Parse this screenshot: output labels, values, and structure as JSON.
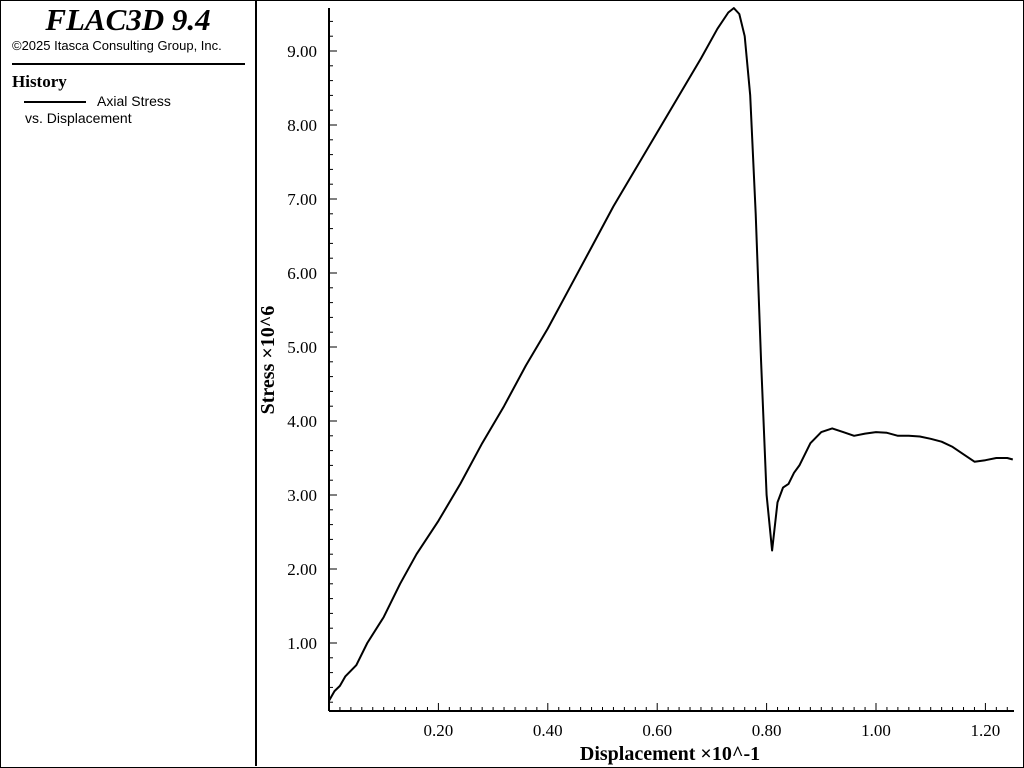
{
  "app": {
    "title": "FLAC3D 9.4",
    "copyright": "©2025 Itasca Consulting Group, Inc."
  },
  "legend": {
    "heading": "History",
    "entry_line1": "Axial Stress",
    "entry_line2": "vs. Displacement"
  },
  "chart_data": {
    "type": "line",
    "xlabel": "Displacement ×10^-1",
    "ylabel": "Stress ×10^6",
    "xlim": [
      0.0,
      1.25
    ],
    "ylim": [
      0.0,
      9.6
    ],
    "xticks": [
      "0.20",
      "0.40",
      "0.60",
      "0.80",
      "1.00",
      "1.20"
    ],
    "xtick_values": [
      0.2,
      0.4,
      0.6,
      0.8,
      1.0,
      1.2
    ],
    "yticks": [
      "1.00",
      "2.00",
      "3.00",
      "4.00",
      "5.00",
      "6.00",
      "7.00",
      "8.00",
      "9.00"
    ],
    "ytick_values": [
      1,
      2,
      3,
      4,
      5,
      6,
      7,
      8,
      9
    ],
    "grid": false,
    "line_color": "#000000",
    "series": [
      {
        "name": "Axial Stress vs. Displacement",
        "x": [
          0.0,
          0.01,
          0.02,
          0.03,
          0.05,
          0.07,
          0.1,
          0.13,
          0.16,
          0.2,
          0.24,
          0.28,
          0.32,
          0.36,
          0.4,
          0.44,
          0.48,
          0.52,
          0.56,
          0.6,
          0.64,
          0.68,
          0.71,
          0.73,
          0.74,
          0.75,
          0.76,
          0.77,
          0.78,
          0.79,
          0.8,
          0.81,
          0.82,
          0.83,
          0.84,
          0.85,
          0.86,
          0.87,
          0.88,
          0.9,
          0.92,
          0.94,
          0.96,
          0.98,
          1.0,
          1.02,
          1.04,
          1.06,
          1.08,
          1.1,
          1.12,
          1.14,
          1.16,
          1.18,
          1.2,
          1.22,
          1.24,
          1.25
        ],
        "y": [
          0.22,
          0.35,
          0.42,
          0.55,
          0.7,
          1.0,
          1.35,
          1.8,
          2.2,
          2.65,
          3.15,
          3.7,
          4.2,
          4.75,
          5.25,
          5.8,
          6.35,
          6.9,
          7.4,
          7.9,
          8.4,
          8.9,
          9.3,
          9.52,
          9.58,
          9.5,
          9.2,
          8.4,
          6.8,
          4.8,
          3.0,
          2.25,
          2.9,
          3.1,
          3.15,
          3.3,
          3.4,
          3.55,
          3.7,
          3.85,
          3.9,
          3.85,
          3.8,
          3.83,
          3.85,
          3.84,
          3.8,
          3.8,
          3.79,
          3.76,
          3.72,
          3.65,
          3.55,
          3.45,
          3.47,
          3.5,
          3.5,
          3.48
        ]
      }
    ]
  }
}
